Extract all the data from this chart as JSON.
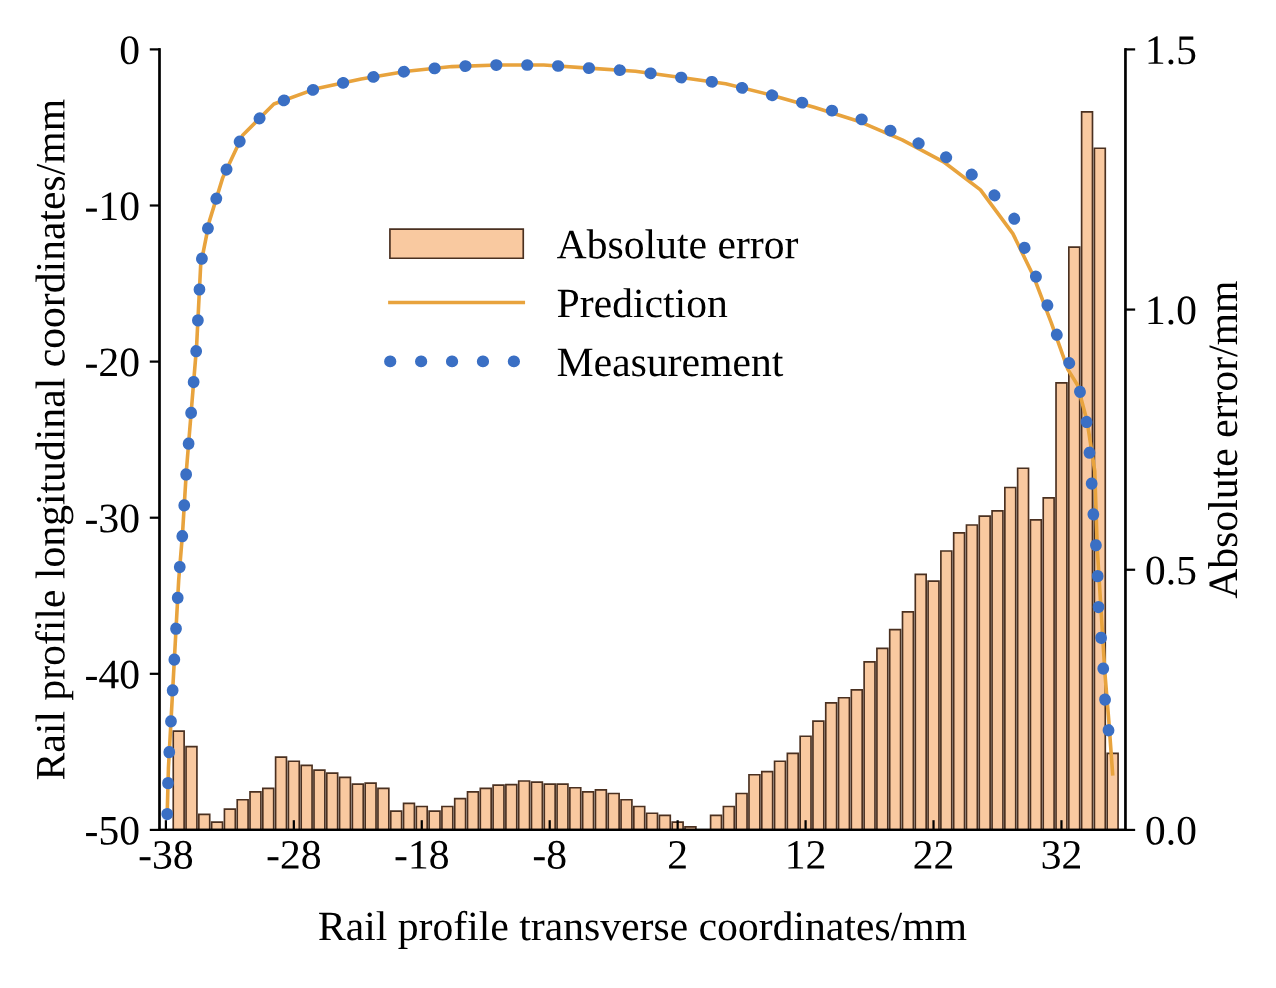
{
  "chart_data": {
    "type": "line",
    "xlabel": "Rail profile transverse coordinates/mm",
    "ylabel": "Rail profile longitudinal coordinates/mm",
    "y2label": "Absolute error/mm",
    "xlim": [
      -38.5,
      37
    ],
    "xticks": [
      -38,
      -28,
      -18,
      -8,
      2,
      12,
      22,
      32
    ],
    "ylim": [
      -50,
      0
    ],
    "yticks": [
      -50,
      -40,
      -30,
      -20,
      -10,
      0
    ],
    "y2lim": [
      0,
      1.5
    ],
    "y2ticks": [
      {
        "value": 0,
        "label": "0.0"
      },
      {
        "value": 0.5,
        "label": "0.5"
      },
      {
        "value": 1.0,
        "label": "1.0"
      },
      {
        "value": 1.5,
        "label": "1.5"
      }
    ],
    "legend": "center",
    "grid": false,
    "series": [
      {
        "name": "Absolute error",
        "type": "bar",
        "axis": "y2",
        "color": "#f9c9a0",
        "x": [
          -37,
          -36,
          -35,
          -34,
          -33,
          -32,
          -31,
          -30,
          -29,
          -28,
          -27,
          -26,
          -25,
          -24,
          -23,
          -22,
          -21,
          -20,
          -19,
          -18,
          -17,
          -16,
          -15,
          -14,
          -13,
          -12,
          -11,
          -10,
          -9,
          -8,
          -7,
          -6,
          -5,
          -4,
          -3,
          -2,
          -1,
          0,
          1,
          2,
          3,
          4,
          5,
          6,
          7,
          8,
          9,
          10,
          11,
          12,
          13,
          14,
          15,
          16,
          17,
          18,
          19,
          20,
          21,
          22,
          23,
          24,
          25,
          26,
          27,
          28,
          29,
          30,
          31,
          32,
          33,
          34,
          35,
          36
        ],
        "values": [
          0.19,
          0.16,
          0.03,
          0.015,
          0.04,
          0.058,
          0.073,
          0.08,
          0.14,
          0.132,
          0.124,
          0.115,
          0.109,
          0.101,
          0.088,
          0.09,
          0.08,
          0.036,
          0.051,
          0.045,
          0.036,
          0.045,
          0.06,
          0.073,
          0.08,
          0.086,
          0.087,
          0.094,
          0.092,
          0.088,
          0.088,
          0.081,
          0.073,
          0.077,
          0.07,
          0.058,
          0.045,
          0.032,
          0.028,
          0.015,
          0.006,
          null,
          0.028,
          0.045,
          0.07,
          0.106,
          0.112,
          0.132,
          0.147,
          0.18,
          0.209,
          0.244,
          0.254,
          0.269,
          0.323,
          0.349,
          0.385,
          0.419,
          0.491,
          0.478,
          0.536,
          0.571,
          0.586,
          0.603,
          0.613,
          0.658,
          0.695,
          0.596,
          0.638,
          0.859,
          1.12,
          1.38,
          1.31,
          0.147
        ]
      },
      {
        "name": "Prediction",
        "color": "#e8a33d",
        "line_style": "solid",
        "x": [
          -37.9,
          -37.8,
          -37.6,
          -37.4,
          -37.2,
          -37.0,
          -36.7,
          -36.4,
          -36.0,
          -35.6,
          -35.28,
          -34.6,
          -33.55,
          -32.0,
          -29.56,
          -26.2,
          -22.74,
          -19.17,
          -15.64,
          -12.05,
          -8.47,
          -4.96,
          -1.3,
          2.27,
          5.75,
          9.2,
          12.67,
          16.13,
          19.55,
          22.78,
          25.67,
          28.2,
          29.8,
          31.2,
          32.5,
          33.25,
          34.0,
          34.6,
          34.8,
          35.1,
          35.4,
          35.7,
          36.0
        ],
        "values": [
          -49,
          -46,
          -43,
          -40,
          -37,
          -34,
          -31,
          -27,
          -23,
          -19,
          -13.8,
          -11.0,
          -8.2,
          -5.5,
          -3.5,
          -2.5,
          -1.9,
          -1.4,
          -1.1,
          -1.0,
          -1.0,
          -1.2,
          -1.4,
          -1.8,
          -2.2,
          -2.9,
          -3.7,
          -4.6,
          -5.8,
          -7.2,
          -9.0,
          -11.8,
          -14.5,
          -17.5,
          -20.5,
          -21.5,
          -23.8,
          -27,
          -32,
          -36,
          -40,
          -43,
          -46.4
        ]
      },
      {
        "name": "Measurement",
        "color": "#3a6fc4",
        "line_style": "dotted",
        "x": [
          -37.9,
          -37.8,
          -37.6,
          -37.4,
          -37.2,
          -37.0,
          -36.7,
          -36.4,
          -36.0,
          -35.6,
          -35.28,
          -34.6,
          -33.55,
          -32.0,
          -29.56,
          -26.2,
          -22.74,
          -19.17,
          -15.64,
          -12.05,
          -8.47,
          -4.96,
          -1.3,
          2.27,
          5.75,
          9.2,
          12.67,
          16.13,
          19.55,
          22.78,
          25.67,
          28.2,
          29.46,
          30.75,
          31.8,
          33.25,
          34.0,
          34.3,
          34.5,
          34.8,
          34.9,
          35.2,
          35.4,
          35.8
        ],
        "values": [
          -49,
          -46,
          -43,
          -40,
          -37,
          -34,
          -31,
          -27,
          -23,
          -19,
          -13.8,
          -11.0,
          -8.2,
          -5.5,
          -3.5,
          -2.5,
          -1.9,
          -1.4,
          -1.1,
          -1.0,
          -1.0,
          -1.2,
          -1.4,
          -1.8,
          -2.2,
          -2.9,
          -3.6,
          -4.4,
          -5.5,
          -6.8,
          -8.4,
          -10.6,
          -13.5,
          -16.0,
          -18.7,
          -21.2,
          -24.0,
          -26.9,
          -29.9,
          -32.8,
          -35.8,
          -38.7,
          -41.6,
          -44.5
        ]
      }
    ]
  }
}
